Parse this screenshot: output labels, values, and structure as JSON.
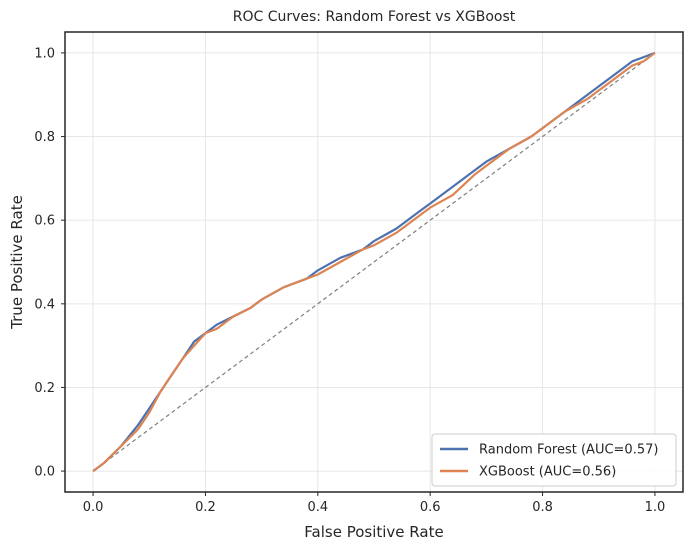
{
  "chart_data": {
    "type": "line",
    "title": "ROC Curves: Random Forest vs XGBoost",
    "xlabel": "False Positive Rate",
    "ylabel": "True Positive Rate",
    "xlim": [
      -0.05,
      1.05
    ],
    "ylim": [
      -0.05,
      1.05
    ],
    "xticks": [
      0.0,
      0.2,
      0.4,
      0.6,
      0.8,
      1.0
    ],
    "yticks": [
      0.0,
      0.2,
      0.4,
      0.6,
      0.8,
      1.0
    ],
    "xtick_labels": [
      "0.0",
      "0.2",
      "0.4",
      "0.6",
      "0.8",
      "1.0"
    ],
    "ytick_labels": [
      "0.0",
      "0.2",
      "0.4",
      "0.6",
      "0.8",
      "1.0"
    ],
    "grid": true,
    "legend_position": "lower-right",
    "series": [
      {
        "name": "Random Forest (AUC=0.57)",
        "color": "#4c72b0",
        "x": [
          0.0,
          0.02,
          0.05,
          0.08,
          0.1,
          0.12,
          0.14,
          0.16,
          0.18,
          0.2,
          0.22,
          0.25,
          0.28,
          0.3,
          0.34,
          0.38,
          0.4,
          0.44,
          0.48,
          0.5,
          0.54,
          0.58,
          0.6,
          0.64,
          0.68,
          0.7,
          0.74,
          0.78,
          0.8,
          0.84,
          0.88,
          0.9,
          0.92,
          0.94,
          0.96,
          0.98,
          1.0
        ],
        "y": [
          0.0,
          0.02,
          0.06,
          0.11,
          0.15,
          0.19,
          0.23,
          0.27,
          0.31,
          0.33,
          0.35,
          0.37,
          0.39,
          0.41,
          0.44,
          0.46,
          0.48,
          0.51,
          0.53,
          0.55,
          0.58,
          0.62,
          0.64,
          0.68,
          0.72,
          0.74,
          0.77,
          0.8,
          0.82,
          0.86,
          0.9,
          0.92,
          0.94,
          0.96,
          0.98,
          0.99,
          1.0
        ]
      },
      {
        "name": "XGBoost (AUC=0.56)",
        "color": "#dd8452",
        "x": [
          0.0,
          0.02,
          0.05,
          0.08,
          0.1,
          0.12,
          0.14,
          0.16,
          0.18,
          0.2,
          0.22,
          0.25,
          0.28,
          0.3,
          0.34,
          0.38,
          0.4,
          0.44,
          0.48,
          0.5,
          0.54,
          0.58,
          0.6,
          0.64,
          0.68,
          0.7,
          0.74,
          0.78,
          0.8,
          0.84,
          0.88,
          0.9,
          0.92,
          0.94,
          0.96,
          0.98,
          1.0
        ],
        "y": [
          0.0,
          0.02,
          0.06,
          0.1,
          0.14,
          0.19,
          0.23,
          0.27,
          0.3,
          0.33,
          0.34,
          0.37,
          0.39,
          0.41,
          0.44,
          0.46,
          0.47,
          0.5,
          0.53,
          0.54,
          0.57,
          0.61,
          0.63,
          0.66,
          0.71,
          0.73,
          0.77,
          0.8,
          0.82,
          0.86,
          0.89,
          0.91,
          0.93,
          0.95,
          0.97,
          0.98,
          1.0
        ]
      }
    ],
    "reference_line": {
      "x": [
        0.0,
        1.0
      ],
      "y": [
        0.0,
        1.0
      ],
      "color": "#7f7f7f",
      "style": "dashed"
    }
  }
}
